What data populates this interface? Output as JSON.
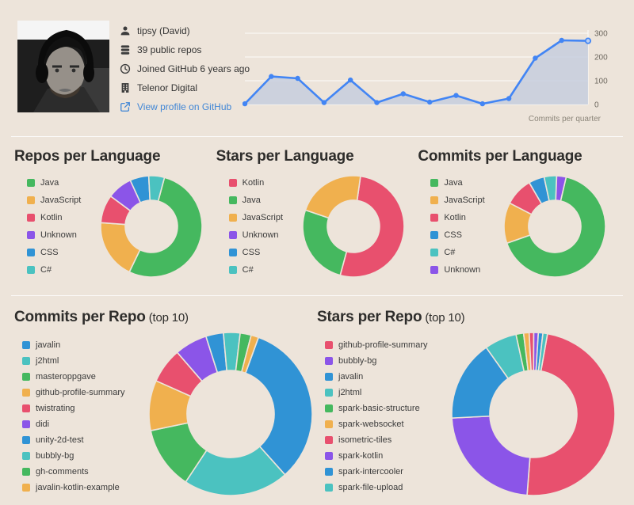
{
  "colors": {
    "background": "#ede4da",
    "divider": "#ffffff",
    "text": "#333333",
    "title": "#2e2d2b",
    "link": "#4287d6",
    "line": "#4285f4",
    "line_fill": "#c5cedd",
    "axis_label": "#6d675e"
  },
  "profile": {
    "avatar_alt": "grayscale photo of man wearing headphones",
    "items": [
      {
        "icon": "user-icon",
        "text": "tipsy (David)"
      },
      {
        "icon": "repos-icon",
        "text": "39 public repos"
      },
      {
        "icon": "clock-icon",
        "text": "Joined GitHub 6 years ago"
      },
      {
        "icon": "organization-icon",
        "text": "Telenor Digital"
      },
      {
        "icon": "external-link-icon",
        "text": "View profile on GitHub"
      }
    ]
  },
  "chart_data": [
    {
      "id": "commits_per_quarter",
      "type": "line",
      "title": "Commits per quarter",
      "xlabel": "",
      "ylabel": "",
      "values": [
        3,
        118,
        110,
        8,
        103,
        8,
        45,
        10,
        38,
        3,
        25,
        195,
        270,
        268
      ],
      "ylim": [
        0,
        300
      ],
      "yticks": [
        0,
        100,
        200,
        300
      ],
      "axis_side": "right",
      "grid": true,
      "legend_position": "none",
      "line_color": "#4285f4",
      "fill_color": "#c5cedd"
    },
    {
      "id": "repos_per_language",
      "type": "pie",
      "title": "Repos per Language",
      "values_unit": "percent (estimated from arc angles)",
      "labels": [
        "Java",
        "JavaScript",
        "Kotlin",
        "Unknown",
        "CSS",
        "C#"
      ],
      "values": [
        53,
        19,
        9,
        8,
        6,
        5
      ],
      "colors": [
        "#45b85f",
        "#f0b04e",
        "#e8506e",
        "#8b55e8",
        "#3093d5",
        "#4bc2c0"
      ],
      "rotation_deg": 15,
      "legend_position": "left"
    },
    {
      "id": "stars_per_language",
      "type": "pie",
      "title": "Stars per Language",
      "values_unit": "percent (estimated from arc angles)",
      "labels": [
        "Kotlin",
        "Java",
        "JavaScript",
        "Unknown",
        "CSS",
        "C#"
      ],
      "values": [
        52,
        26,
        22,
        0,
        0,
        0
      ],
      "colors": [
        "#e8506e",
        "#45b85f",
        "#f0b04e",
        "#8b55e8",
        "#3093d5",
        "#4bc2c0"
      ],
      "rotation_deg": 8,
      "legend_position": "left"
    },
    {
      "id": "commits_per_language",
      "type": "pie",
      "title": "Commits per Language",
      "values_unit": "percent (estimated from arc angles)",
      "labels": [
        "Java",
        "JavaScript",
        "Kotlin",
        "CSS",
        "C#",
        "Unknown"
      ],
      "values": [
        66,
        13,
        9,
        5,
        4,
        3
      ],
      "colors": [
        "#45b85f",
        "#f0b04e",
        "#e8506e",
        "#3093d5",
        "#4bc2c0",
        "#8b55e8"
      ],
      "rotation_deg": 13,
      "legend_position": "left"
    },
    {
      "id": "commits_per_repo",
      "type": "pie",
      "title": "Commits per Repo",
      "title_suffix": "(top 10)",
      "values_unit": "percent (estimated from arc angles)",
      "labels": [
        "javalin",
        "j2html",
        "masteroppgave",
        "github-profile-summary",
        "twistrating",
        "didi",
        "unity-2d-test",
        "bubbly-bg",
        "gh-comments",
        "javalin-kotlin-example"
      ],
      "values": [
        33,
        21,
        12.5,
        10,
        7,
        6.5,
        3.5,
        3.3,
        2.2,
        1.5
      ],
      "colors": [
        "#3093d5",
        "#4bc2c0",
        "#45b85f",
        "#f0b04e",
        "#e8506e",
        "#8b55e8",
        "#3093d5",
        "#4bc2c0",
        "#45b85f",
        "#f0b04e"
      ],
      "rotation_deg": 20,
      "legend_position": "left"
    },
    {
      "id": "stars_per_repo",
      "type": "pie",
      "title": "Stars per Repo",
      "title_suffix": "(top 10)",
      "values_unit": "percent (estimated from arc angles)",
      "labels": [
        "github-profile-summary",
        "bubbly-bg",
        "javalin",
        "j2html",
        "spark-basic-structure",
        "spark-websocket",
        "isometric-tiles",
        "spark-kotlin",
        "spark-intercooler",
        "spark-file-upload"
      ],
      "values": [
        48.5,
        23,
        16,
        6.4,
        1.5,
        1.1,
        0.9,
        0.9,
        0.9,
        0.9
      ],
      "colors": [
        "#e8506e",
        "#8b55e8",
        "#3093d5",
        "#4bc2c0",
        "#45b85f",
        "#f0b04e",
        "#e8506e",
        "#8b55e8",
        "#3093d5",
        "#4bc2c0"
      ],
      "rotation_deg": 10,
      "legend_position": "left"
    }
  ]
}
